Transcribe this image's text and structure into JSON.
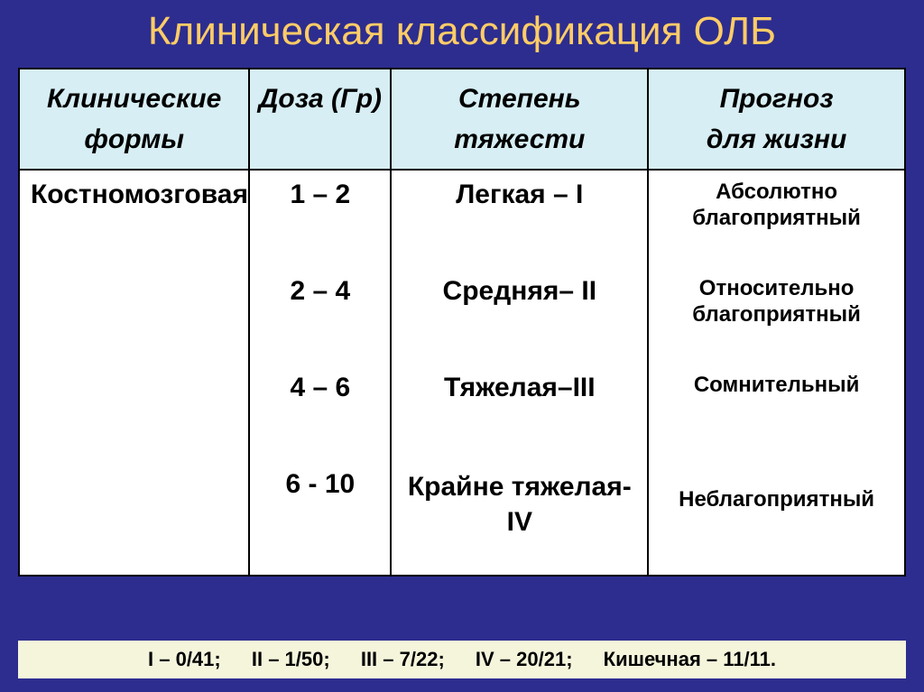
{
  "title": "Клиническая классификация ОЛБ",
  "headers": {
    "forms": "Клинические формы",
    "dose": "Доза (Гр)",
    "severity": "Степень тяжести",
    "prognosis": "Прогноз для жизни"
  },
  "row": {
    "form": "Костномозговая",
    "dose": [
      "1 – 2",
      "2 – 4",
      "4 – 6",
      "6 - 10"
    ],
    "severity": [
      "Легкая – I",
      "Средняя– II",
      "Тяжелая–III",
      "Крайне тяжелая- IV"
    ],
    "prognosis": [
      "Абсолютно благоприятный",
      "Относительно благоприятный",
      "Сомнительный",
      "Неблагоприятный"
    ]
  },
  "footer": [
    "I  –  0/41;",
    "II – 1/50;",
    "III – 7/22;",
    "IV – 20/21;",
    "Кишечная – 11/11."
  ]
}
